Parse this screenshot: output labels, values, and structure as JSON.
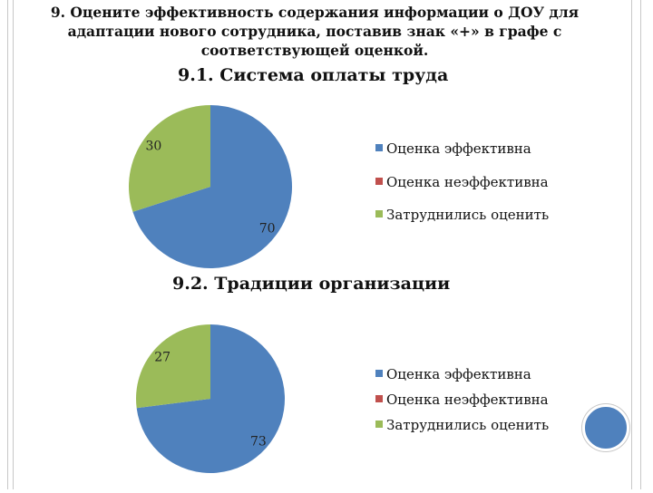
{
  "header": {
    "line1": "9. Оцените эффективность содержания информации о ДОУ для",
    "line2": "адаптации нового сотрудника, поставив знак «+» в графе с",
    "line3": "соответствующей оценкой."
  },
  "colors": {
    "effective": "#4f81bd",
    "ineffective": "#c0504d",
    "undecided": "#9bbb59"
  },
  "chart_data": [
    {
      "type": "pie",
      "title": "9.1. Система оплаты труда",
      "categories": [
        "Оценка эффективна",
        "Оценка неэффективна",
        "Затруднились оценить"
      ],
      "values": [
        70,
        0,
        30
      ],
      "data_labels": [
        "70",
        "",
        "30"
      ],
      "legend": "right"
    },
    {
      "type": "pie",
      "title": "9.2. Традиции организации",
      "categories": [
        "Оценка эффективна",
        "Оценка неэффективна",
        "Затруднились оценить"
      ],
      "values": [
        73,
        0,
        27
      ],
      "data_labels": [
        "73",
        "",
        "27"
      ],
      "legend": "right"
    }
  ]
}
